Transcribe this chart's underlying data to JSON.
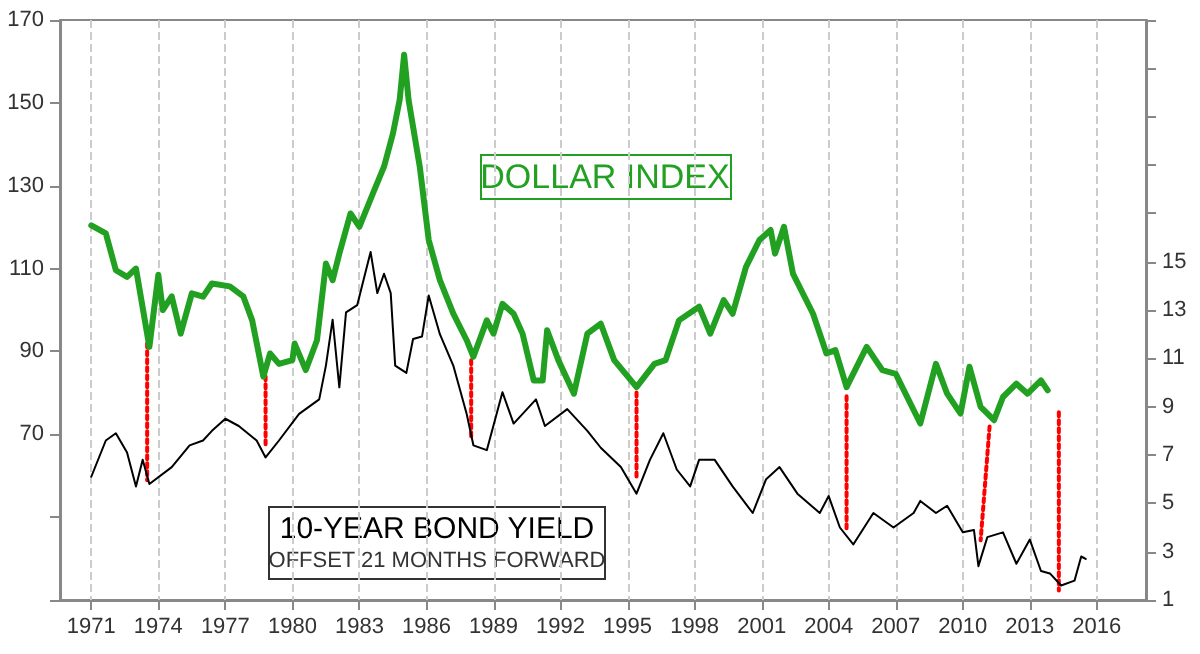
{
  "chart_data": {
    "type": "line",
    "annotations": [
      "OFFSET 21 MONTHS FORWARD"
    ],
    "xlim": [
      1969.6,
      2018.2
    ],
    "xticks": [
      1971,
      1974,
      1977,
      1980,
      1983,
      1986,
      1989,
      1992,
      1995,
      1998,
      2001,
      2004,
      2007,
      2010,
      2013,
      2016
    ],
    "ylim": [
      30,
      170
    ],
    "yticks": [
      {
        "value": 30,
        "label": null
      },
      {
        "value": 50,
        "label": null
      },
      70,
      90,
      110,
      130,
      150,
      170
    ],
    "y2lim": [
      1,
      25
    ],
    "y2ticks": [
      1,
      3,
      5,
      7,
      9,
      11,
      13,
      15,
      {
        "value": 17,
        "label": null
      },
      {
        "value": 19,
        "label": null
      },
      {
        "value": 21,
        "label": null
      },
      {
        "value": 23,
        "label": null
      },
      {
        "value": 25,
        "label": null
      }
    ],
    "grid": "x",
    "legend": false,
    "marker": "none",
    "series": [
      {
        "name": "DOLLAR INDEX",
        "color": "#22a022",
        "x": [
          1971.0,
          1971.65,
          1972.1,
          1972.6,
          1973.0,
          1973.6,
          1974.0,
          1974.2,
          1974.6,
          1975.0,
          1975.5,
          1976.0,
          1976.4,
          1977.2,
          1977.8,
          1978.2,
          1978.7,
          1979.0,
          1979.4,
          1980.0,
          1980.1,
          1980.6,
          1981.1,
          1981.5,
          1981.8,
          1982.1,
          1982.6,
          1983.0,
          1983.6,
          1984.1,
          1984.5,
          1984.8,
          1985.0,
          1985.2,
          1985.7,
          1986.1,
          1986.6,
          1987.2,
          1987.8,
          1988.1,
          1988.7,
          1989.0,
          1989.4,
          1989.9,
          1990.3,
          1990.8,
          1991.2,
          1991.4,
          1991.9,
          1992.6,
          1993.2,
          1993.8,
          1994.4,
          1995.4,
          1996.2,
          1996.7,
          1997.3,
          1998.2,
          1998.7,
          1999.3,
          1999.7,
          2000.3,
          2000.9,
          2001.4,
          2001.6,
          2002.0,
          2002.4,
          2003.3,
          2003.9,
          2004.3,
          2004.8,
          2005.7,
          2006.4,
          2007.0,
          2008.1,
          2008.8,
          2009.3,
          2009.9,
          2010.3,
          2010.8,
          2011.4,
          2011.8,
          2012.4,
          2012.9,
          2013.5,
          2013.8
        ],
        "values": [
          120.4,
          118.5,
          109.6,
          108,
          110,
          91.1,
          108.5,
          100,
          103.3,
          94.3,
          104,
          103.2,
          106.4,
          105.7,
          103.3,
          97.5,
          83.9,
          89.5,
          87,
          87.9,
          91.9,
          85.5,
          92.7,
          111.2,
          107.2,
          113.6,
          123.3,
          120.1,
          128.1,
          134.6,
          142.6,
          150.7,
          161.6,
          150.7,
          134.6,
          116.9,
          107.2,
          99.1,
          92.7,
          88.7,
          97.5,
          94.3,
          101.5,
          99.1,
          94.3,
          83,
          83,
          95.1,
          87.9,
          79.8,
          94.3,
          96.7,
          87.9,
          81.4,
          87,
          87.9,
          97.5,
          100.8,
          94.3,
          102.4,
          99.1,
          110.4,
          116.9,
          119.3,
          113.6,
          120.1,
          108.8,
          99.1,
          89.5,
          90.3,
          81.4,
          91.1,
          85.5,
          84.6,
          72.6,
          87,
          79.8,
          75,
          86.3,
          76.6,
          73.4,
          79,
          82.2,
          79.8,
          83,
          80.6
        ]
      },
      {
        "name": "10-YEAR BOND YIELD",
        "color": "#000000",
        "axis": "y2",
        "x": [
          1971.0,
          1971.65,
          1972.1,
          1972.6,
          1973.0,
          1973.3,
          1973.6,
          1974.6,
          1975.4,
          1976.0,
          1976.4,
          1977.0,
          1977.6,
          1978.4,
          1978.8,
          1979.4,
          1980.3,
          1981.2,
          1981.5,
          1981.8,
          1982.1,
          1982.4,
          1982.9,
          1983.2,
          1983.5,
          1983.8,
          1984.1,
          1984.4,
          1984.6,
          1985.1,
          1985.4,
          1985.8,
          1986.1,
          1986.6,
          1987.2,
          1987.8,
          1988.1,
          1988.7,
          1989.4,
          1989.9,
          1990.9,
          1991.3,
          1992.3,
          1993.2,
          1993.8,
          1994.7,
          1995.4,
          1996.0,
          1996.6,
          1997.2,
          1997.8,
          1998.2,
          1998.9,
          1999.7,
          2000.6,
          2001.2,
          2001.8,
          2002.6,
          2003.6,
          2004.0,
          2004.5,
          2005.1,
          2006.0,
          2006.9,
          2007.8,
          2008.1,
          2008.8,
          2009.3,
          2010.0,
          2010.5,
          2010.7,
          2011.1,
          2011.8,
          2012.4,
          2013.0,
          2013.5,
          2013.9,
          2014.4,
          2015.0,
          2015.3,
          2015.5
        ],
        "values": [
          6.1,
          7.6,
          7.9,
          7.1,
          5.7,
          6.8,
          5.8,
          6.5,
          7.4,
          7.6,
          8.0,
          8.5,
          8.2,
          7.6,
          6.9,
          7.6,
          8.7,
          9.3,
          10.7,
          12.6,
          9.8,
          12.9,
          13.2,
          14.3,
          15.4,
          13.7,
          14.5,
          13.7,
          10.7,
          10.4,
          11.8,
          11.9,
          13.6,
          12.0,
          10.7,
          8.7,
          7.4,
          7.2,
          9.6,
          8.3,
          9.3,
          8.2,
          8.9,
          8.0,
          7.3,
          6.5,
          5.4,
          6.8,
          7.9,
          6.4,
          5.7,
          6.8,
          6.8,
          5.7,
          4.6,
          6.0,
          6.5,
          5.4,
          4.6,
          5.3,
          4.0,
          3.3,
          4.6,
          4.0,
          4.6,
          5.1,
          4.6,
          4.9,
          3.8,
          3.9,
          2.4,
          3.6,
          3.8,
          2.5,
          3.5,
          2.2,
          2.1,
          1.6,
          1.8,
          2.8,
          2.7
        ]
      },
      {
        "color": "#ff0000",
        "line_style": "dotted",
        "x": [
          1973.5,
          1973.5,
          null,
          1978.8,
          1978.8,
          null,
          1988.0,
          1988.0,
          null,
          1995.4,
          1995.4,
          null,
          2004.8,
          2004.8,
          null,
          2011.2,
          2010.8,
          null,
          2014.3,
          2014.3
        ],
        "values": [
          92,
          58.9,
          null,
          84,
          67.6,
          null,
          87.9,
          68.6,
          null,
          80.1,
          58.9,
          null,
          79.2,
          46.8,
          null,
          71.9,
          44.4,
          null,
          75.3,
          32.3
        ]
      }
    ]
  }
}
